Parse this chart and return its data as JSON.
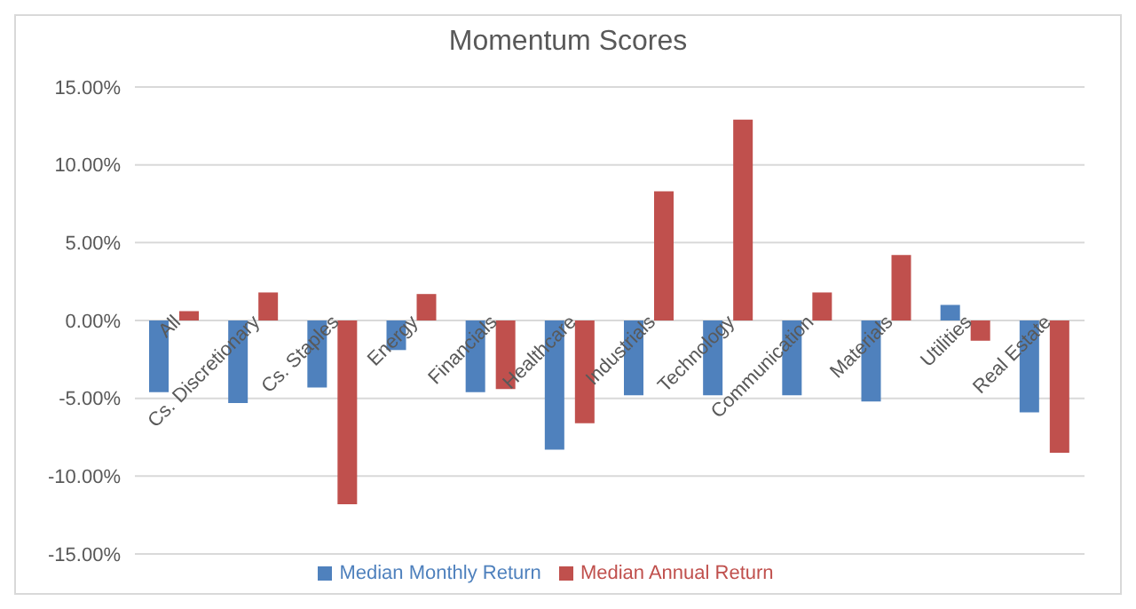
{
  "chart_data": {
    "type": "bar",
    "title": "Momentum Scores",
    "categories": [
      "All",
      "Cs. Discretionary",
      "Cs. Staples",
      "Energy",
      "Financials",
      "Healthcare",
      "Industrials",
      "Technology",
      "Communication",
      "Materials",
      "Utilities",
      "Real Estate"
    ],
    "series": [
      {
        "name": "Median Monthly Return",
        "color": "#4f81bd",
        "values": [
          -4.6,
          -5.3,
          -4.3,
          -1.9,
          -4.6,
          -8.3,
          -4.8,
          -4.8,
          -4.8,
          -5.2,
          1.0,
          -5.9
        ]
      },
      {
        "name": "Median Annual Return",
        "color": "#c0504d",
        "values": [
          0.6,
          1.8,
          -11.8,
          1.7,
          -4.4,
          -6.6,
          8.3,
          12.9,
          1.8,
          4.2,
          -1.3,
          -8.5
        ]
      }
    ],
    "ylim": [
      -15,
      15
    ],
    "yticks": [
      {
        "value": -15,
        "label": "-15.00%"
      },
      {
        "value": -10,
        "label": "-10.00%"
      },
      {
        "value": -5,
        "label": "-5.00%"
      },
      {
        "value": 0,
        "label": "0.00%"
      },
      {
        "value": 5,
        "label": "5.00%"
      },
      {
        "value": 10,
        "label": "10.00%"
      },
      {
        "value": 15,
        "label": "15.00%"
      }
    ],
    "grid": "y",
    "legend": "bottom"
  }
}
